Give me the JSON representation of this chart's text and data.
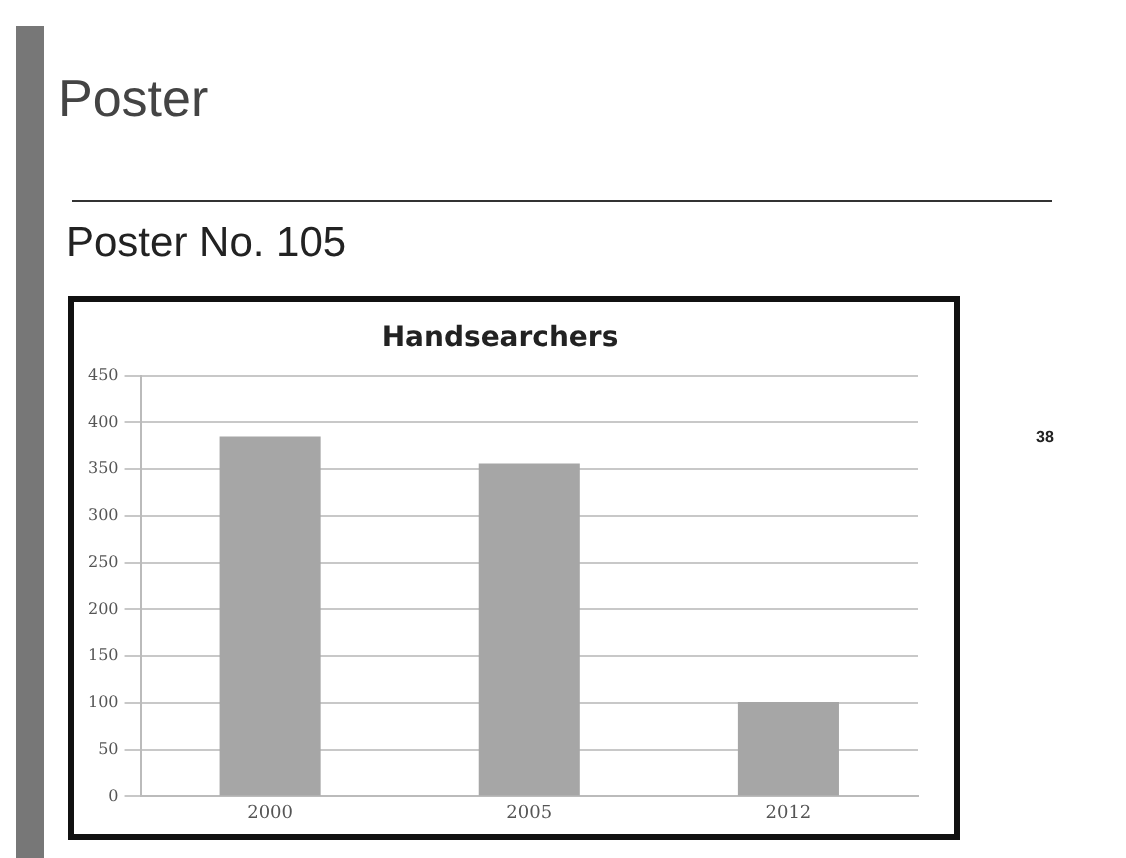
{
  "chart_data": {
    "type": "bar",
    "title": "Handsearchers",
    "categories": [
      "2000",
      "2005",
      "2012"
    ],
    "values": [
      385,
      356,
      101
    ],
    "color": "#a6a6a6",
    "ylim": [
      0,
      450
    ],
    "yticks": [
      0,
      50,
      100,
      150,
      200,
      250,
      300,
      350,
      400,
      450
    ],
    "grid": "y",
    "legend": false,
    "annotations": [
      "Poster",
      "Poster No. 105",
      "38"
    ]
  }
}
